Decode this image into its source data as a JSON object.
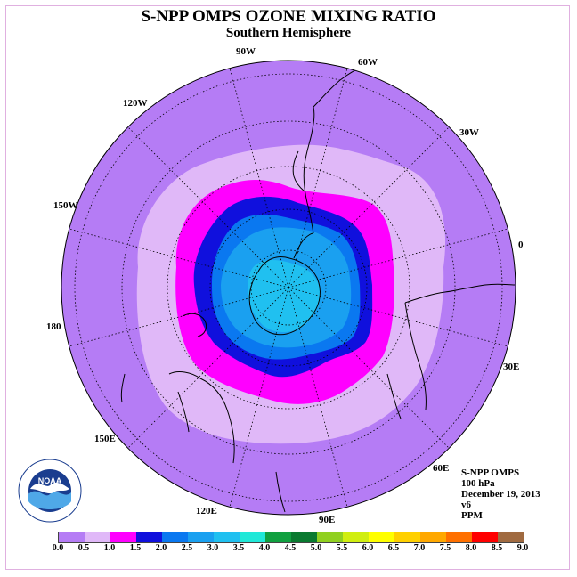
{
  "header": {
    "title": "S-NPP OMPS OZONE MIXING RATIO",
    "subtitle": "Southern Hemisphere"
  },
  "longitude_labels": [
    "90W",
    "60W",
    "30W",
    "0",
    "30E",
    "60E",
    "90E",
    "120E",
    "150E",
    "180",
    "150W",
    "120W"
  ],
  "info": {
    "instrument": "S-NPP OMPS",
    "level": "100 hPa",
    "date": "December 19, 2013",
    "version": "v6",
    "units": "PPM"
  },
  "logo": {
    "name": "noaa-logo",
    "text": "NOAA"
  },
  "colorbar": {
    "ticks": [
      "0.0",
      "0.5",
      "1.0",
      "1.5",
      "2.0",
      "2.5",
      "3.0",
      "3.5",
      "4.0",
      "4.5",
      "5.0",
      "5.5",
      "6.0",
      "6.5",
      "7.0",
      "7.5",
      "8.0",
      "8.5",
      "9.0"
    ],
    "colors": [
      "#b57cf5",
      "#e0b8f8",
      "#ff00ff",
      "#1010dd",
      "#0a78f0",
      "#1aa0f0",
      "#20c0f0",
      "#20e8d8",
      "#10a040",
      "#0a7a30",
      "#90d020",
      "#d0ee10",
      "#ffff00",
      "#ffd000",
      "#ffa800",
      "#ff7000",
      "#ff0000",
      "#a06a40"
    ]
  },
  "map_data": {
    "projection": "south-polar-stereographic",
    "fields": [
      {
        "range": "0.0-0.5",
        "color": "#b57cf5"
      },
      {
        "range": "0.5-1.0",
        "color": "#e0b8f8"
      },
      {
        "range": "1.0-1.5",
        "color": "#ff00ff"
      },
      {
        "range": "1.5-2.0",
        "color": "#1010dd"
      },
      {
        "range": "2.0-2.5",
        "color": "#0a78f0"
      },
      {
        "range": "2.5-3.0",
        "color": "#1aa0f0"
      },
      {
        "range": "3.0-3.5",
        "color": "#20c0f0"
      }
    ]
  }
}
